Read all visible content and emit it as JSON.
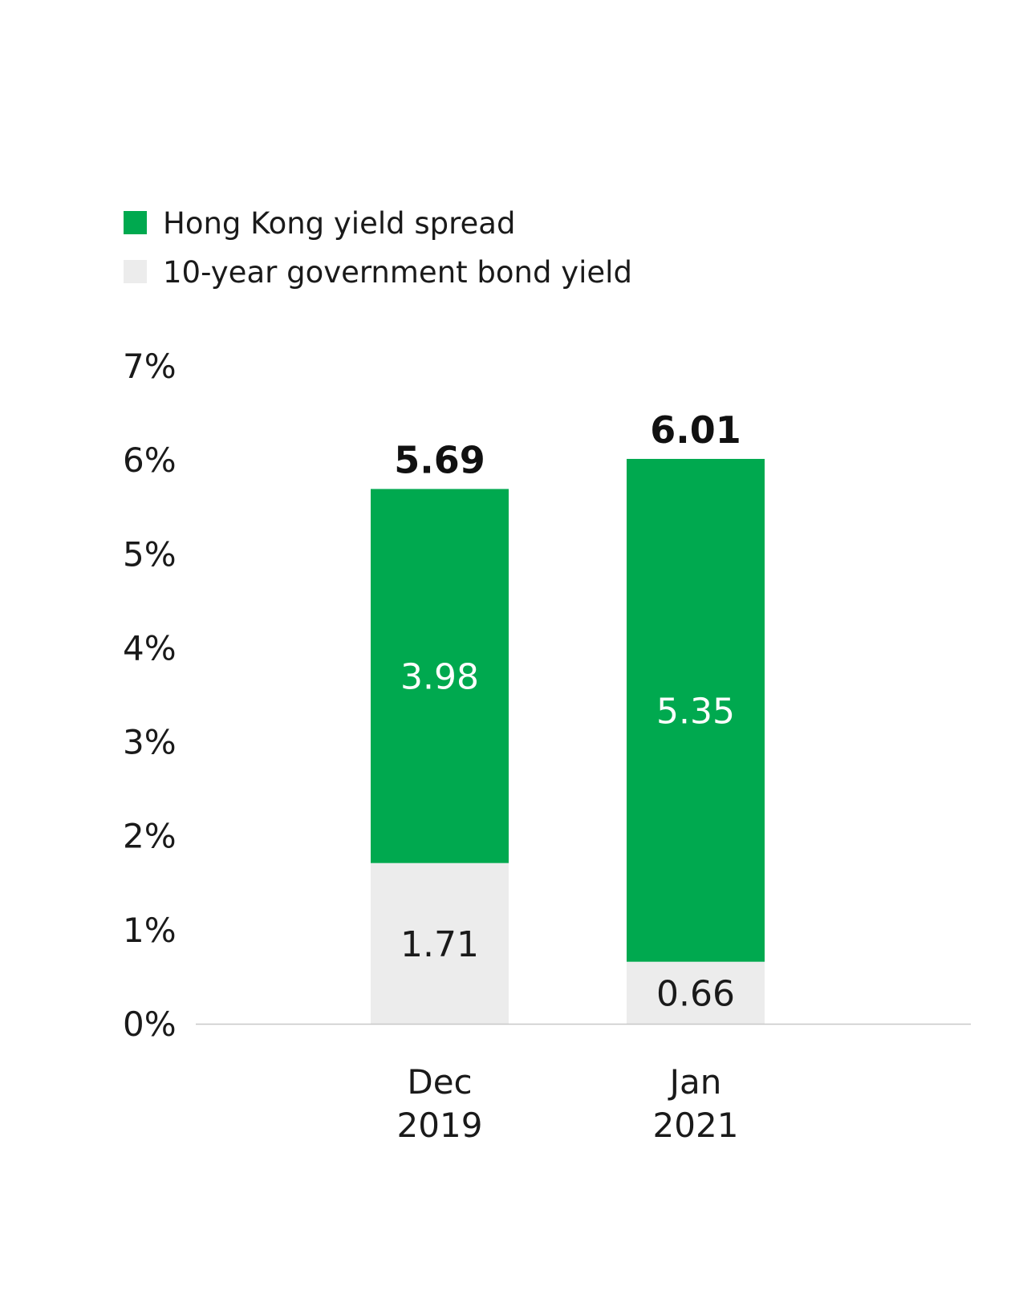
{
  "chart_data": {
    "type": "bar",
    "stacked": true,
    "categories": [
      [
        "Dec",
        "2019"
      ],
      [
        "Jan",
        "2021"
      ]
    ],
    "series": [
      {
        "name": "10-year government bond yield",
        "color": "#ececec",
        "label_color": "#1a1a1a",
        "values": [
          1.71,
          0.66
        ],
        "value_labels": [
          "1.71",
          "0.66"
        ]
      },
      {
        "name": "Hong Kong yield spread",
        "color": "#00a94f",
        "label_color": "#ffffff",
        "values": [
          3.98,
          5.35
        ],
        "value_labels": [
          "3.98",
          "5.35"
        ]
      }
    ],
    "totals": [
      "5.69",
      "6.01"
    ],
    "legend": [
      {
        "label": "Hong Kong yield spread",
        "color": "#00a94f"
      },
      {
        "label": "10-year government bond yield",
        "color": "#ececec"
      }
    ],
    "legend_position": "top-left",
    "yticks": [
      0,
      1,
      2,
      3,
      4,
      5,
      6,
      7
    ],
    "ytick_labels": [
      "0%",
      "1%",
      "2%",
      "3%",
      "4%",
      "5%",
      "6%",
      "7%"
    ],
    "ylim": [
      0,
      7
    ],
    "grid": false,
    "axis_color": "#c8c8c8"
  }
}
